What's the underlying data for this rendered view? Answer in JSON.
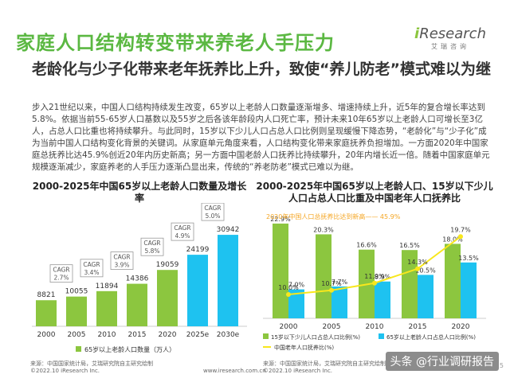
{
  "page": {
    "title": "家庭人口结构转变带来养老人手压力",
    "logo_brand_i": "i",
    "logo_brand_rest": "Research",
    "logo_cn": "艾瑞咨询",
    "subtitle": "老龄化与少子化带来老年抚养比上升，致使“养儿防老”模式难以为继",
    "body": "步入21世纪以来，中国人口结构持续发生改变，65岁以上老龄人口数量逐渐增多、增速持续上升，近5年的复合增长率达到5.8%。依据当前55-65岁人口基数以及55岁之后各该年龄段内人口死亡率，预计未来10年65岁以上老龄人口可增长至3亿人，占总人口比重也将持续攀升。与此同时，15岁以下少儿人口占总人口比例则呈现缓慢下降态势，“老龄化”与“少子化”成为当前中国人口结构变化背景的关键词。从家庭单元角度来看，人口结构变化带来家庭抚养负担增加。一方面2020年中国家庭总抚养比达45.9%创近20年内历史新高；另一方面中国老龄人口抚养比持续攀升，20年内增长近一倍。随着中国家庭单元规模逐渐减少，家庭养老的人手压力逐渐凸显出来，传统的“养老防老”模式已难以为继。",
    "page_number": "5",
    "watermark": "头条 @行业调研报告",
    "colors": {
      "title": "#5bb842",
      "green": "#8cc63f",
      "blue": "#1ec2f0",
      "accent_orange": "#f5a623",
      "cagr_box": "#999999"
    }
  },
  "chart_data": [
    {
      "type": "bar",
      "title": "2000-2025年中国65岁以上老龄人口数量及增长率",
      "categories": [
        "2000",
        "2005",
        "2010",
        "2015",
        "2020",
        "2025e",
        "2030e"
      ],
      "values": [
        8821,
        10055,
        11894,
        14386,
        19059,
        24199,
        30942
      ],
      "estimated": [
        false,
        false,
        false,
        false,
        false,
        true,
        true
      ],
      "cagr_labels": [
        {
          "label": "CAGR",
          "value": "2.7%"
        },
        {
          "label": "CAGR",
          "value": "3.4%"
        },
        {
          "label": "CAGR",
          "value": "3.9%"
        },
        {
          "label": "CAGR",
          "value": "5.8%"
        },
        {
          "label": "CAGR",
          "value": "4.9%"
        },
        {
          "label": "CAGR",
          "value": "5.0%"
        }
      ],
      "legend": [
        "65岁以上老龄人口数量（万人）"
      ],
      "ylim": [
        0,
        35000
      ],
      "source": "来源：中国国家统计局，艾瑞研究院自主研究绘制",
      "copyright": "©2022.10 iResearch Inc."
    },
    {
      "type": "bar+line",
      "title": "2000-2025年中国65岁以上老龄人口、15岁以下少儿人口占总人口比重及中国老年人口抚养比",
      "categories": [
        "2000",
        "2005",
        "2010",
        "2015",
        "2020"
      ],
      "series": [
        {
          "name": "15岁以下少儿人口占总人口比例(%)",
          "type": "bar",
          "values": [
            22.9,
            20.3,
            16.6,
            16.5,
            18.0
          ]
        },
        {
          "name": "65岁以上老龄人口占总人口比例(%)",
          "type": "bar",
          "values": [
            7.0,
            7.7,
            8.9,
            10.5,
            13.5
          ]
        },
        {
          "name": "中国老年人口抚养比(%)",
          "type": "line",
          "values": [
            10.0,
            10.7,
            11.9,
            14.3,
            19.7
          ]
        }
      ],
      "value_labels": {
        "children": [
          "22.9%",
          "20.3%",
          "16.6%",
          "16.5%",
          "18.0%"
        ],
        "elderly": [
          "7.0%",
          "7.7%",
          "8.9%",
          "10.5%",
          "13.5%"
        ],
        "dependency": [
          "10.0%",
          "10.7%",
          "11.9%",
          "14.3%",
          "19.7%"
        ]
      },
      "annotation": "2020年中国人口总抚养比达到新高—— 45.9%",
      "ylim": [
        0,
        25
      ],
      "source": "来源：中国国家统计局，艾瑞研究院自主研究绘制",
      "copyright": "©2022.10 iResearch Inc.",
      "site": "www.iresearch.com.cn"
    }
  ],
  "footer": {
    "site": "www.iresearch.com.cn"
  }
}
